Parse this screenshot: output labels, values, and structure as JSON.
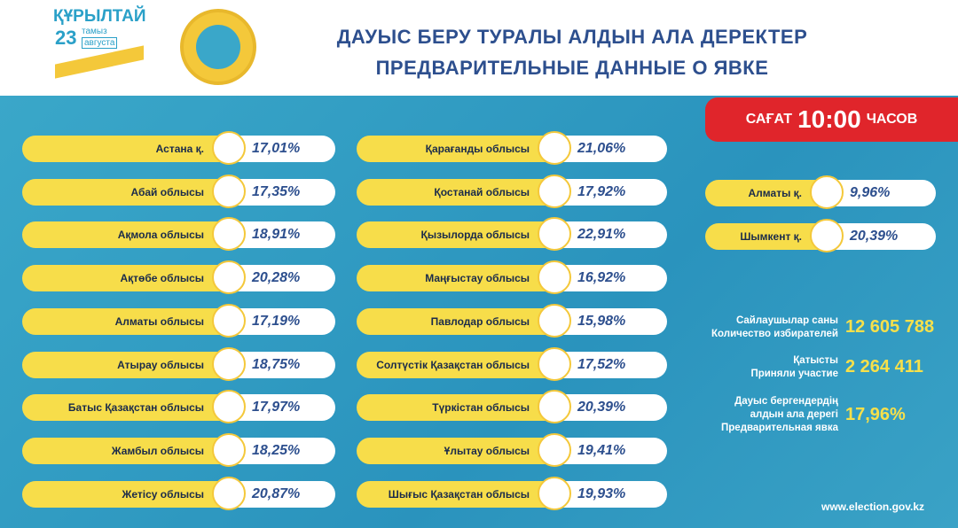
{
  "header": {
    "logo": {
      "title": "ҚҰРЫЛТАЙ",
      "day": "23",
      "month_kz": "тамыз",
      "month_ru": "августа"
    },
    "title_kz": "ДАУЫС БЕРУ ТУРАЛЫ АЛДЫН АЛА ДЕРЕКТЕР",
    "title_ru": "ПРЕДВАРИТЕЛЬНЫЕ ДАННЫЕ О ЯВКЕ"
  },
  "time_badge": {
    "label_kz": "САҒАТ",
    "time": "10:00",
    "label_ru": "ЧАСОВ"
  },
  "columns": [
    [
      {
        "name": "Астана қ.",
        "value": "17,01%"
      },
      {
        "name": "Абай облысы",
        "value": "17,35%"
      },
      {
        "name": "Ақмола облысы",
        "value": "18,91%"
      },
      {
        "name": "Ақтөбе облысы",
        "value": "20,28%"
      },
      {
        "name": "Алматы облысы",
        "value": "17,19%"
      },
      {
        "name": "Атырау облысы",
        "value": "18,75%"
      },
      {
        "name": "Батыс Қазақстан облысы",
        "value": "17,97%"
      },
      {
        "name": "Жамбыл облысы",
        "value": "18,25%"
      },
      {
        "name": "Жетісу облысы",
        "value": "20,87%"
      }
    ],
    [
      {
        "name": "Қарағанды облысы",
        "value": "21,06%"
      },
      {
        "name": "Қостанай облысы",
        "value": "17,92%"
      },
      {
        "name": "Қызылорда облысы",
        "value": "22,91%"
      },
      {
        "name": "Маңғыстау облысы",
        "value": "16,92%"
      },
      {
        "name": "Павлодар облысы",
        "value": "15,98%"
      },
      {
        "name": "Солтүстік Қазақстан облысы",
        "value": "17,52%"
      },
      {
        "name": "Түркістан облысы",
        "value": "20,39%"
      },
      {
        "name": "Ұлытау облысы",
        "value": "19,41%"
      },
      {
        "name": "Шығыс Қазақстан облысы",
        "value": "19,93%"
      }
    ],
    [
      {
        "name": "Алматы қ.",
        "value": "9,96%"
      },
      {
        "name": "Шымкент қ.",
        "value": "20,39%"
      }
    ]
  ],
  "stats": [
    {
      "label": [
        "Сайлаушылар саны",
        "Количество избирателей"
      ],
      "value": "12 605 788"
    },
    {
      "label": [
        "Қатысты",
        "Приняли участие"
      ],
      "value": "2 264 411"
    },
    {
      "label": [
        "Дауыс бергендердің",
        "алдын ала дерегі",
        "Предварительная явка"
      ],
      "value": "17,96%"
    }
  ],
  "footer": "www.election.gov.kz"
}
